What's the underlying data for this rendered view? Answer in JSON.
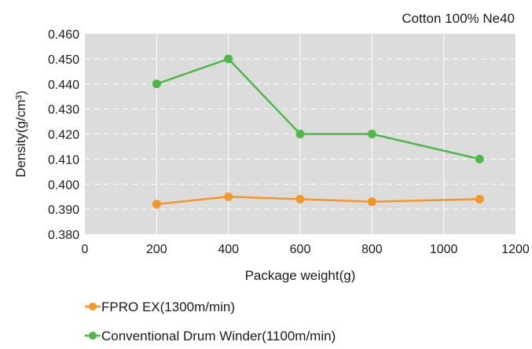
{
  "chart_data": {
    "type": "line",
    "subtitle": "Cotton 100% Ne40",
    "xlabel": "Package weight(g)",
    "ylabel": "Density(g/cm³)",
    "xlim": [
      0,
      1200
    ],
    "ylim": [
      0.38,
      0.46
    ],
    "x_ticks": [
      0,
      200,
      400,
      600,
      800,
      1000,
      1200
    ],
    "x_tick_labels": [
      "0",
      "200",
      "400",
      "600",
      "800",
      "1000",
      "1200"
    ],
    "y_ticks": [
      0.38,
      0.39,
      0.4,
      0.41,
      0.42,
      0.43,
      0.44,
      0.45,
      0.46
    ],
    "y_tick_labels": [
      "0.380",
      "0.390",
      "0.400",
      "0.410",
      "0.420",
      "0.430",
      "0.440",
      "0.450",
      "0.460"
    ],
    "grid": true,
    "legend_position": "bottom",
    "x": [
      200,
      400,
      600,
      800,
      1100
    ],
    "series": [
      {
        "name": "FPRO EX(1300m/min)",
        "color": "#f4962a",
        "values": [
          0.392,
          0.395,
          0.394,
          0.393,
          0.394
        ]
      },
      {
        "name": "Conventional Drum Winder(1100m/min)",
        "color": "#4cb847",
        "values": [
          0.44,
          0.45,
          0.42,
          0.42,
          0.41
        ]
      }
    ]
  }
}
